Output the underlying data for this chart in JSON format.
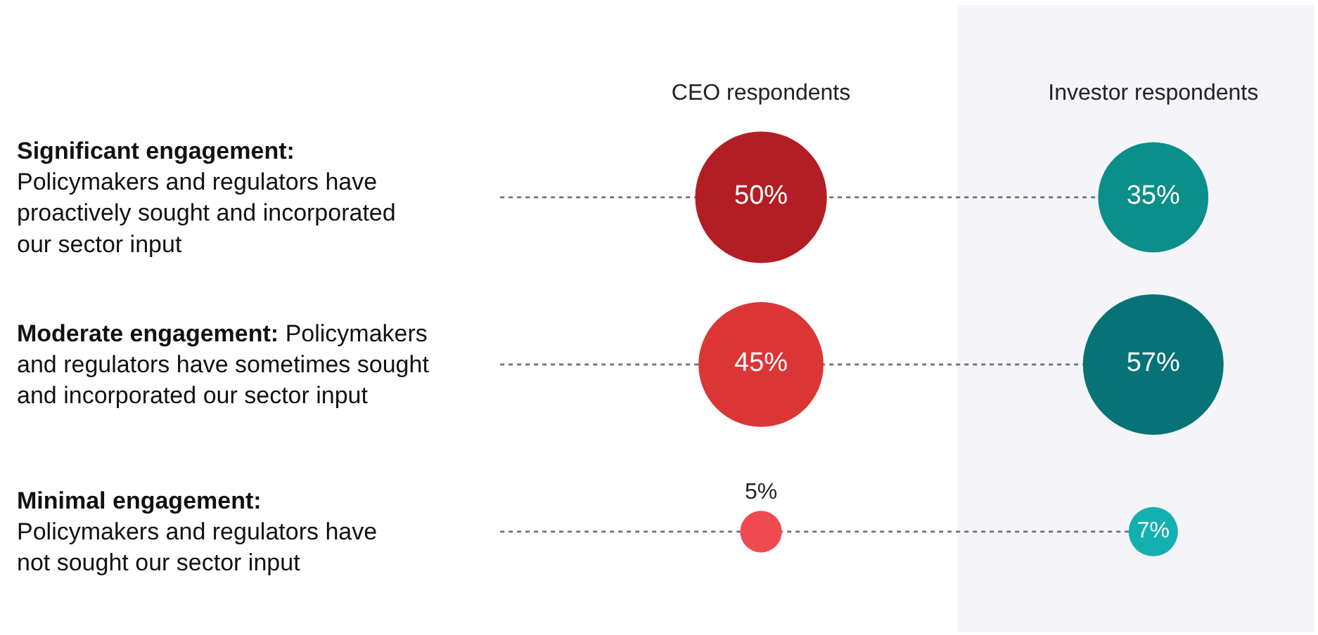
{
  "chart_data": {
    "type": "other",
    "categories": [
      "Significant engagement:\nPolicymakers and regulators have\nproactively sought and incorporated\nour sector input",
      "Moderate engagement: Policymakers\nand regulators have sometimes sought\nand incorporated our sector input",
      "Minimal engagement:\nPolicymakers and regulators have\nnot sought our sector input"
    ],
    "series": [
      {
        "name": "CEO respondents",
        "values": [
          50,
          45,
          5
        ],
        "colors": [
          "#b31e24",
          "#dc3535",
          "#ee4a50"
        ],
        "value_labels": [
          "50%",
          "45%",
          "5%"
        ]
      },
      {
        "name": "Investor respondents",
        "values": [
          35,
          57,
          7
        ],
        "colors": [
          "#0a8f8a",
          "#077376",
          "#14b0b0"
        ],
        "value_labels": [
          "35%",
          "57%",
          "7%"
        ]
      }
    ],
    "legend": false
  }
}
